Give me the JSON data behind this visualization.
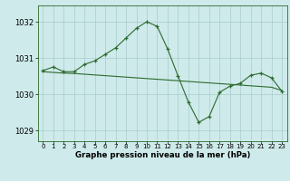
{
  "x": [
    0,
    1,
    2,
    3,
    4,
    5,
    6,
    7,
    8,
    9,
    10,
    11,
    12,
    13,
    14,
    15,
    16,
    17,
    18,
    19,
    20,
    21,
    22,
    23
  ],
  "y_main": [
    1030.65,
    1030.75,
    1030.62,
    1030.62,
    1030.82,
    1030.92,
    1031.1,
    1031.28,
    1031.55,
    1031.82,
    1032.0,
    1031.87,
    1031.25,
    1030.5,
    1029.78,
    1029.22,
    1029.38,
    1030.05,
    1030.22,
    1030.3,
    1030.52,
    1030.58,
    1030.45,
    1030.08
  ],
  "y_trend": [
    1030.62,
    1030.6,
    1030.58,
    1030.57,
    1030.55,
    1030.53,
    1030.51,
    1030.49,
    1030.47,
    1030.45,
    1030.43,
    1030.41,
    1030.39,
    1030.37,
    1030.35,
    1030.33,
    1030.31,
    1030.29,
    1030.27,
    1030.25,
    1030.23,
    1030.21,
    1030.19,
    1030.1
  ],
  "line_color": "#2d6a2d",
  "bg_color": "#ceeaea",
  "grid_color": "#a8cccc",
  "xlabel": "Graphe pression niveau de la mer (hPa)",
  "yticks": [
    1029,
    1030,
    1031,
    1032
  ],
  "xtick_labels": [
    "0",
    "1",
    "2",
    "3",
    "4",
    "5",
    "6",
    "7",
    "8",
    "9",
    "10",
    "11",
    "12",
    "13",
    "14",
    "15",
    "16",
    "17",
    "18",
    "19",
    "20",
    "21",
    "22",
    "23"
  ],
  "ylim": [
    1028.7,
    1032.45
  ],
  "xlim": [
    -0.5,
    23.5
  ]
}
